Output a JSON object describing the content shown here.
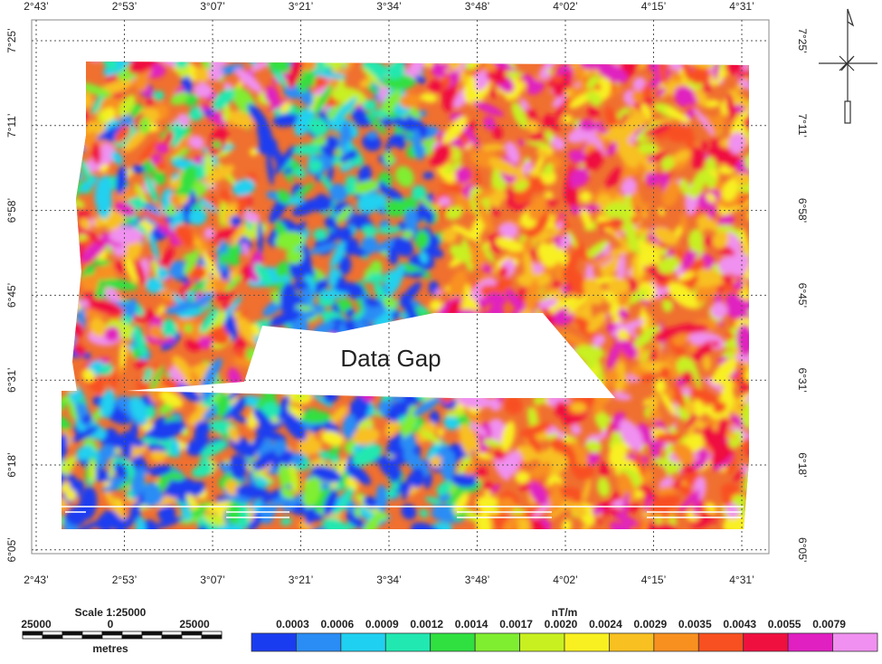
{
  "map": {
    "longitude_labels": [
      "2°43’",
      "2°53’",
      "3°07’",
      "3°21’",
      "3°34’",
      "3°48’",
      "4°02’",
      "4°15’",
      "4°31’"
    ],
    "latitude_labels": [
      "7°25’",
      "7°11’",
      "6°58’",
      "6°45’",
      "6°31’",
      "6°18’",
      "6°05’"
    ],
    "annotation": "Data Gap",
    "scale": {
      "title": "Scale 1:25000",
      "left": "25000",
      "center": "0",
      "right": "25000",
      "unit": "metres"
    },
    "colorbar": {
      "unit": "nT/m",
      "labels": [
        "0.0003",
        "0.0006",
        "0.0009",
        "0.0012",
        "0.0014",
        "0.0017",
        "0.0020",
        "0.0024",
        "0.0029",
        "0.0035",
        "0.0043",
        "0.0055",
        "0.0079"
      ],
      "colors": [
        "#1a3cf0",
        "#2a8cf5",
        "#20d0f0",
        "#20e8b0",
        "#30e040",
        "#80ee30",
        "#c8f020",
        "#f8f020",
        "#f8c020",
        "#f89020",
        "#f85020",
        "#f01040",
        "#e020c0",
        "#f090f0"
      ]
    }
  }
}
